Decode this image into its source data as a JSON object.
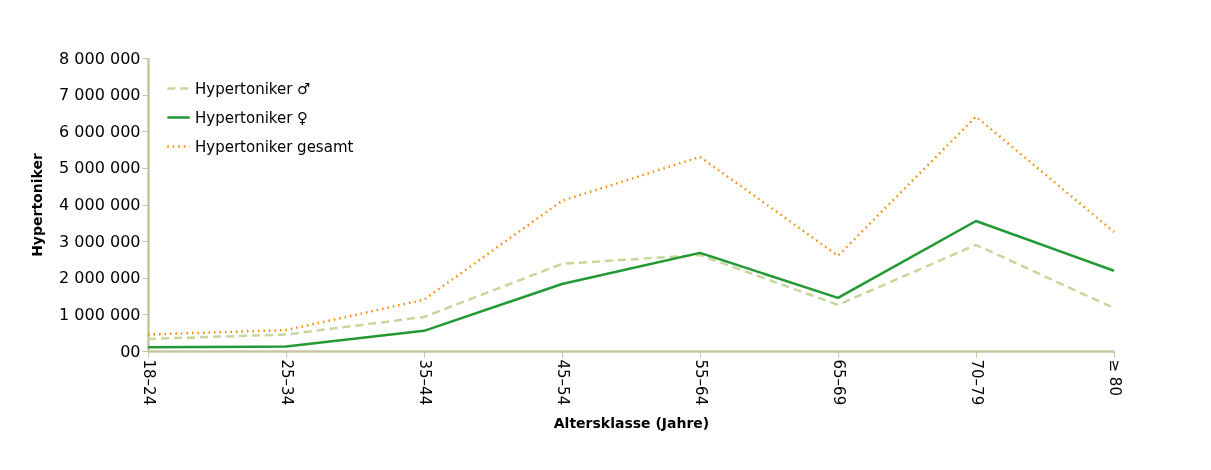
{
  "chart_data": {
    "type": "line",
    "xlabel": "Altersklasse (Jahre)",
    "ylabel": "Hypertoniker",
    "categories": [
      "18–24",
      "25–34",
      "35–44",
      "45–54",
      "55–64",
      "65–69",
      "70–79",
      "≥ 80"
    ],
    "series": [
      {
        "name": "Hypertoniker ♂",
        "color": "#c5d89a",
        "line_style": "dashed",
        "values": [
          330000,
          450000,
          930000,
          2380000,
          2620000,
          1260000,
          2900000,
          1170000
        ]
      },
      {
        "name": "Hypertoniker ♀",
        "color": "#229933",
        "line_style": "solid",
        "values": [
          100000,
          120000,
          550000,
          1830000,
          2680000,
          1450000,
          3550000,
          2190000
        ]
      },
      {
        "name": "Hypertoniker gesamt",
        "color": "#f28c00",
        "line_style": "dotted",
        "values": [
          450000,
          570000,
          1400000,
          4100000,
          5300000,
          2600000,
          6400000,
          3250000
        ]
      }
    ],
    "ylim": [
      0,
      8000000
    ],
    "yticks": [
      {
        "value": 0,
        "label": "00"
      },
      {
        "value": 1000000,
        "label": "1 000 000"
      },
      {
        "value": 2000000,
        "label": "2 000 000"
      },
      {
        "value": 3000000,
        "label": "3 000 000"
      },
      {
        "value": 4000000,
        "label": "4 000 000"
      },
      {
        "value": 5000000,
        "label": "5 000 000"
      },
      {
        "value": 6000000,
        "label": "6 000 000"
      },
      {
        "value": 7000000,
        "label": "7 000 000"
      },
      {
        "value": 8000000,
        "label": "8 000 000"
      }
    ],
    "legend": "top left",
    "grid": false,
    "marker": "none"
  }
}
